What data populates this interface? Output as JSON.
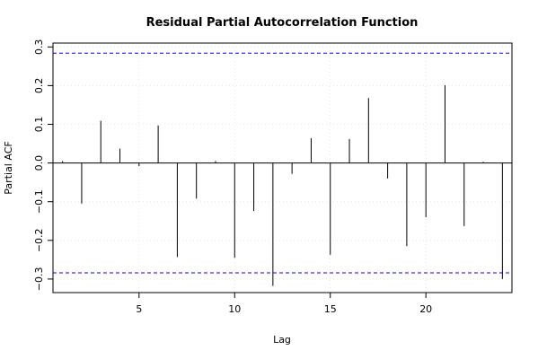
{
  "chart_data": {
    "type": "bar",
    "title": "Residual Partial Autocorrelation Function",
    "xlabel": "Lag",
    "ylabel": "Partial ACF",
    "xlim": [
      0.5,
      24.5
    ],
    "ylim": [
      -0.335,
      0.31
    ],
    "x_ticks": [
      5,
      10,
      15,
      20
    ],
    "y_ticks": [
      -0.3,
      -0.2,
      -0.1,
      0.0,
      0.1,
      0.2,
      0.3
    ],
    "y_tick_labels": [
      "−0.3",
      "−0.2",
      "−0.1",
      "0.0",
      "0.1",
      "0.2",
      "0.3"
    ],
    "grid": true,
    "confidence_bound": 0.284,
    "series": [
      {
        "x": [
          1,
          2,
          3,
          4,
          5,
          6,
          7,
          8,
          9,
          10,
          11,
          12,
          13,
          14,
          15,
          16,
          17,
          18,
          19,
          20,
          21,
          22,
          23,
          24
        ],
        "values": [
          0.005,
          -0.105,
          0.109,
          0.037,
          -0.008,
          0.097,
          -0.243,
          -0.092,
          0.005,
          -0.245,
          -0.124,
          -0.318,
          -0.028,
          0.064,
          -0.237,
          0.062,
          0.168,
          -0.04,
          -0.215,
          -0.14,
          0.201,
          -0.163,
          0.003,
          -0.3
        ]
      }
    ],
    "colors": {
      "bars": "#000000",
      "bounds": "#0000ff",
      "grid": "#e6e6e6",
      "axis": "#000000"
    }
  }
}
